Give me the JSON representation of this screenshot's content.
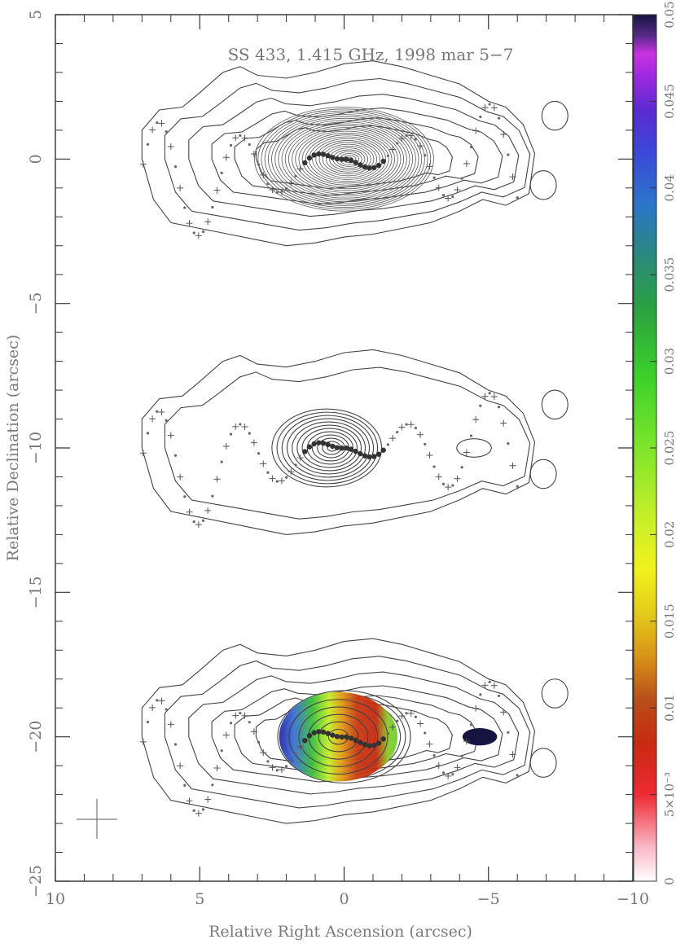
{
  "chart_data": {
    "type": "contour",
    "title": "SS 433, 1.415 GHz, 1998 mar 5−7",
    "xlabel": "Relative Right Ascension (arcsec)",
    "ylabel": "Relative Declination (arcsec)",
    "xlim": [
      10,
      -10
    ],
    "ylim": [
      -25,
      5
    ],
    "x_ticks": [
      {
        "value": 10,
        "label": "10"
      },
      {
        "value": 5,
        "label": "5"
      },
      {
        "value": 0,
        "label": "0"
      },
      {
        "value": -5,
        "label": "−5"
      },
      {
        "value": -10,
        "label": "−10"
      }
    ],
    "y_ticks": [
      {
        "value": 5,
        "label": "5"
      },
      {
        "value": 0,
        "label": "0"
      },
      {
        "value": -5,
        "label": "−5"
      },
      {
        "value": -10,
        "label": "−10"
      },
      {
        "value": -15,
        "label": "−15"
      },
      {
        "value": -20,
        "label": "−20"
      },
      {
        "value": -25,
        "label": "−25"
      }
    ],
    "panels": [
      {
        "dec_center": 0,
        "core_ra": 0
      },
      {
        "dec_center": -10,
        "core_ra": 0
      },
      {
        "dec_center": -20,
        "core_ra": 0
      }
    ],
    "colorbar": {
      "range": [
        0,
        0.05
      ],
      "ticks": [
        {
          "value": 0,
          "label": "0"
        },
        {
          "value": 0.005,
          "label": "5×10⁻³"
        },
        {
          "value": 0.01,
          "label": "0.01"
        },
        {
          "value": 0.015,
          "label": "0.015"
        },
        {
          "value": 0.02,
          "label": "0.02"
        },
        {
          "value": 0.025,
          "label": "0.025"
        },
        {
          "value": 0.03,
          "label": "0.03"
        },
        {
          "value": 0.035,
          "label": "0.035"
        },
        {
          "value": 0.04,
          "label": "0.04"
        },
        {
          "value": 0.045,
          "label": "0.045"
        },
        {
          "value": 0.05,
          "label": "0.05"
        }
      ],
      "colors": [
        "#ffffff",
        "#f9b6c4",
        "#ee2a33",
        "#c82a10",
        "#b8501a",
        "#d99418",
        "#e3cc1a",
        "#f1f21e",
        "#c6ef2a",
        "#7ee52a",
        "#3dd22a",
        "#2ba240",
        "#2a8a7a",
        "#2a76c8",
        "#3c49d8",
        "#5b2ad0",
        "#a02ae0",
        "#c833e0",
        "#5a2a8a",
        "#151540"
      ]
    },
    "colors": {
      "contour": "#444444",
      "text": "#777777",
      "axes": "#333333",
      "jet_marker": "#555555"
    }
  }
}
